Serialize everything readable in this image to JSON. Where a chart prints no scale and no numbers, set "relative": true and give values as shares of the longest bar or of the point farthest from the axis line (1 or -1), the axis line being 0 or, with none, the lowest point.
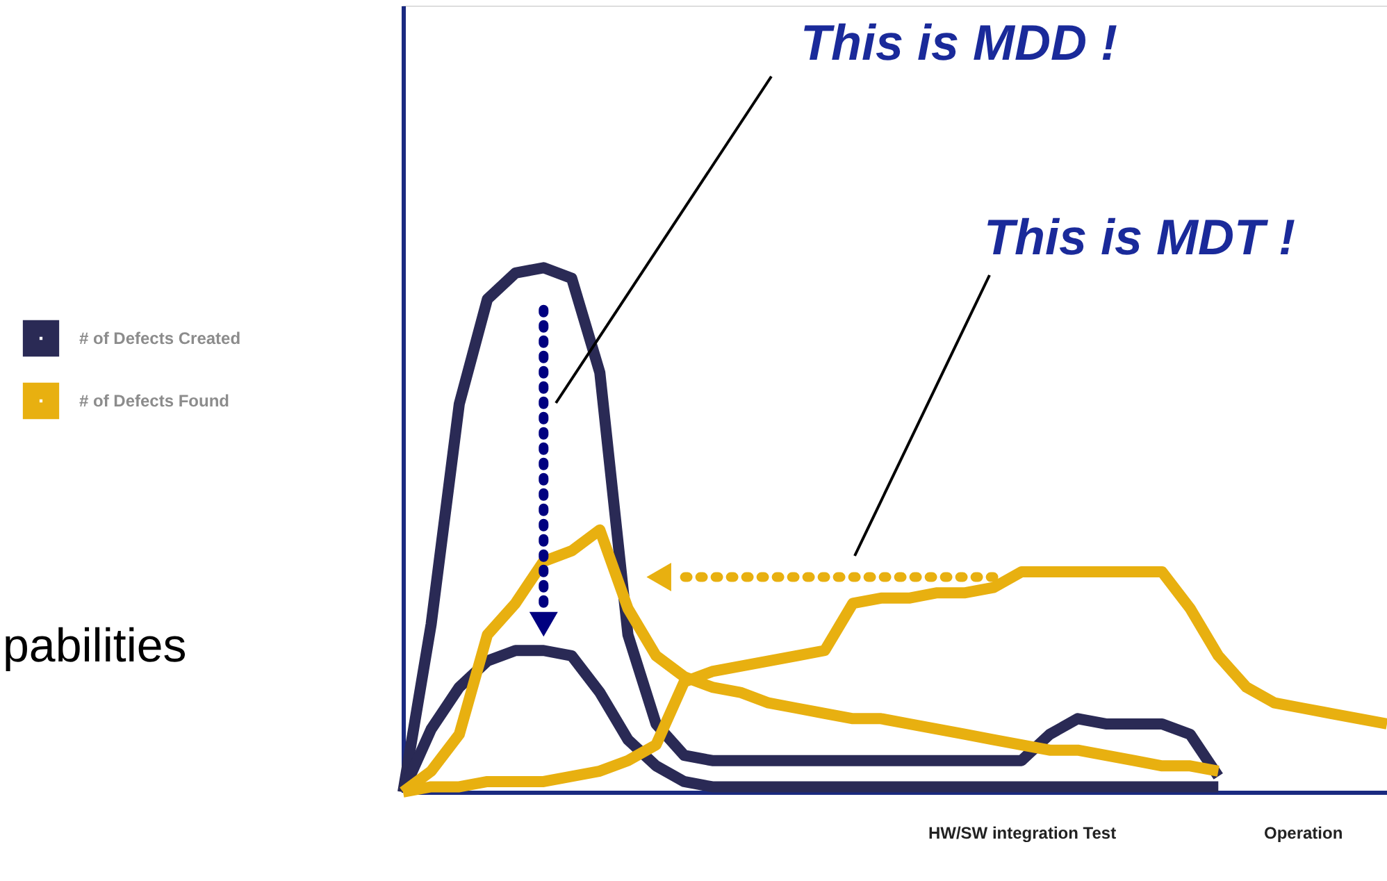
{
  "chart_data": {
    "type": "line",
    "relative": true,
    "grid": false,
    "legend": "left",
    "categories": [
      null,
      null,
      null,
      null,
      null,
      null,
      null,
      null,
      null,
      null,
      null,
      null,
      null,
      null,
      null,
      null,
      null,
      null,
      null,
      null,
      null,
      null,
      "HW/SW integration Test",
      null,
      null,
      null,
      null,
      null,
      null,
      null,
      null,
      null,
      "Operation",
      null,
      null,
      null
    ],
    "series": [
      {
        "name": "# of Defects Created",
        "color": "#2a2a55",
        "values": [
          0,
          0.32,
          0.74,
          0.94,
          0.99,
          1.0,
          0.98,
          0.8,
          0.3,
          0.13,
          0.07,
          0.06,
          0.06,
          0.06,
          0.06,
          0.06,
          0.06,
          0.06,
          0.06,
          0.06,
          0.06,
          0.06,
          0.06,
          0.11,
          0.14,
          0.13,
          0.13,
          0.13,
          0.11,
          0.03,
          null,
          null,
          null,
          null,
          null,
          null
        ]
      },
      {
        "color": "#2a2a55",
        "values": [
          0,
          0.12,
          0.2,
          0.25,
          0.27,
          0.27,
          0.26,
          0.19,
          0.1,
          0.05,
          0.02,
          0.01,
          0.01,
          0.01,
          0.01,
          0.01,
          0.01,
          0.01,
          0.01,
          0.01,
          0.01,
          0.01,
          0.01,
          0.01,
          0.01,
          0.01,
          0.01,
          0.01,
          0.01,
          0.01,
          null,
          null,
          null,
          null,
          null,
          null
        ]
      },
      {
        "name": "# of Defects Found",
        "color": "#e8b010",
        "values": [
          0,
          0.04,
          0.11,
          0.3,
          0.36,
          0.44,
          0.46,
          0.5,
          0.35,
          0.26,
          0.22,
          0.2,
          0.19,
          0.17,
          0.16,
          0.15,
          0.14,
          0.14,
          0.13,
          0.12,
          0.11,
          0.1,
          0.09,
          0.08,
          0.08,
          0.07,
          0.06,
          0.05,
          0.05,
          0.04,
          null,
          null,
          null,
          null,
          null,
          null
        ]
      },
      {
        "color": "#e8b010",
        "values": [
          0,
          0.01,
          0.01,
          0.02,
          0.02,
          0.02,
          0.03,
          0.04,
          0.06,
          0.09,
          0.21,
          0.23,
          0.24,
          0.25,
          0.26,
          0.27,
          0.36,
          0.37,
          0.37,
          0.38,
          0.38,
          0.39,
          0.42,
          0.42,
          0.42,
          0.42,
          0.42,
          0.42,
          0.35,
          0.26,
          0.2,
          0.17,
          0.16,
          0.15,
          0.14,
          0.13
        ]
      }
    ],
    "annotations": [
      "This is MDD !",
      "This is MDT !",
      "pabilities"
    ]
  }
}
